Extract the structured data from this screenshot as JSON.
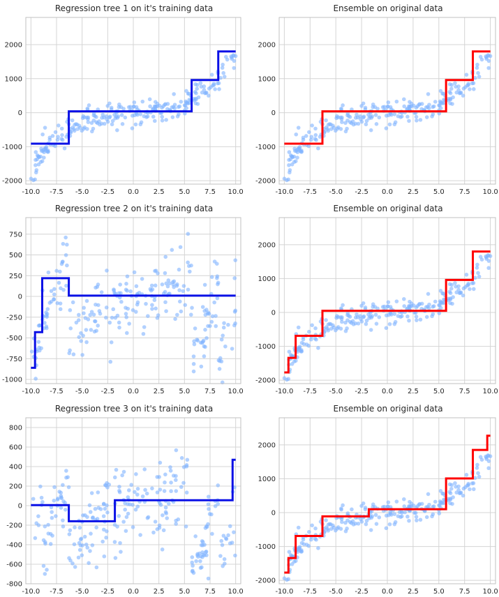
{
  "colors": {
    "background": "#ffffff",
    "grid": "#d4d4d4",
    "axes_edge": "#c0c0c0",
    "points": "#7fb3ff",
    "tree_line": "#0a10e6",
    "ensemble_line": "#ff0000"
  },
  "chart_data": [
    {
      "type": "scatter",
      "title": "Regression tree 1 on it's training data",
      "xlim": [
        -10.5,
        10.5
      ],
      "ylim": [
        -2100,
        2800
      ],
      "xticks": [
        "-10.0",
        "-7.5",
        "-5.0",
        "-2.5",
        "0.0",
        "2.5",
        "5.0",
        "7.5",
        "10.0"
      ],
      "xtick_values": [
        -10,
        -7.5,
        -5,
        -2.5,
        0,
        2.5,
        5,
        7.5,
        10
      ],
      "yticks": [
        "-2000",
        "-1000",
        "0",
        "1000",
        "2000"
      ],
      "ytick_values": [
        -2000,
        -1000,
        0,
        1000,
        2000
      ],
      "grid": true,
      "points_model": "cubic",
      "noise": 200,
      "seed": 11,
      "series": [
        {
          "line_color": "tree",
          "step_x": [
            -10,
            -6.3,
            5.7,
            8.3,
            10
          ],
          "step_y": [
            -910,
            40,
            960,
            1800
          ]
        }
      ]
    },
    {
      "type": "scatter",
      "title": "Ensemble on original data",
      "xlim": [
        -10.5,
        10.5
      ],
      "ylim": [
        -2100,
        2800
      ],
      "xticks": [
        "-10.0",
        "-7.5",
        "-5.0",
        "-2.5",
        "0.0",
        "2.5",
        "5.0",
        "7.5",
        "10.0"
      ],
      "xtick_values": [
        -10,
        -7.5,
        -5,
        -2.5,
        0,
        2.5,
        5,
        7.5,
        10
      ],
      "yticks": [
        "-2000",
        "-1000",
        "0",
        "1000",
        "2000"
      ],
      "ytick_values": [
        -2000,
        -1000,
        0,
        1000,
        2000
      ],
      "grid": true,
      "points_model": "cubic",
      "noise": 200,
      "seed": 11,
      "series": [
        {
          "line_color": "ensemble",
          "step_x": [
            -10,
            -6.3,
            5.7,
            8.3,
            10
          ],
          "step_y": [
            -910,
            40,
            960,
            1800
          ]
        }
      ]
    },
    {
      "type": "scatter",
      "title": "Regression tree 2 on it's training data",
      "xlim": [
        -10.5,
        10.5
      ],
      "ylim": [
        -1050,
        950
      ],
      "xticks": [
        "-10.0",
        "-7.5",
        "-5.0",
        "-2.5",
        "0.0",
        "2.5",
        "5.0",
        "7.5",
        "10.0"
      ],
      "xtick_values": [
        -10,
        -7.5,
        -5,
        -2.5,
        0,
        2.5,
        5,
        7.5,
        10
      ],
      "yticks": [
        "-1000",
        "-750",
        "-500",
        "-250",
        "0",
        "250",
        "500",
        "750"
      ],
      "ytick_values": [
        -1000,
        -750,
        -500,
        -250,
        0,
        250,
        500,
        750
      ],
      "grid": true,
      "points_model": "residual2",
      "noise": 200,
      "seed": 23,
      "series": [
        {
          "line_color": "tree",
          "step_x": [
            -10,
            -9.6,
            -8.9,
            -6.3,
            10
          ],
          "step_y": [
            -860,
            -430,
            220,
            10
          ]
        }
      ]
    },
    {
      "type": "scatter",
      "title": "Ensemble on original data",
      "xlim": [
        -10.5,
        10.5
      ],
      "ylim": [
        -2100,
        2800
      ],
      "xticks": [
        "-10.0",
        "-7.5",
        "-5.0",
        "-2.5",
        "0.0",
        "2.5",
        "5.0",
        "7.5",
        "10.0"
      ],
      "xtick_values": [
        -10,
        -7.5,
        -5,
        -2.5,
        0,
        2.5,
        5,
        7.5,
        10
      ],
      "yticks": [
        "-2000",
        "-1000",
        "0",
        "1000",
        "2000"
      ],
      "ytick_values": [
        -2000,
        -1000,
        0,
        1000,
        2000
      ],
      "grid": true,
      "points_model": "cubic",
      "noise": 200,
      "seed": 11,
      "series": [
        {
          "line_color": "ensemble",
          "step_x": [
            -10,
            -9.6,
            -8.9,
            -6.3,
            5.7,
            8.3,
            10
          ],
          "step_y": [
            -1770,
            -1340,
            -690,
            50,
            960,
            1800
          ]
        }
      ]
    },
    {
      "type": "scatter",
      "title": "Regression tree 3 on it's training data",
      "xlim": [
        -10.5,
        10.5
      ],
      "ylim": [
        -800,
        900
      ],
      "xticks": [
        "-10.0",
        "-7.5",
        "-5.0",
        "-2.5",
        "0.0",
        "2.5",
        "5.0",
        "7.5",
        "10.0"
      ],
      "xtick_values": [
        -10,
        -7.5,
        -5,
        -2.5,
        0,
        2.5,
        5,
        7.5,
        10
      ],
      "yticks": [
        "-800",
        "-600",
        "-400",
        "-200",
        "0",
        "200",
        "400",
        "600",
        "800"
      ],
      "ytick_values": [
        -800,
        -600,
        -400,
        -200,
        0,
        200,
        400,
        600,
        800
      ],
      "grid": true,
      "points_model": "residual3",
      "noise": 200,
      "seed": 37,
      "series": [
        {
          "line_color": "tree",
          "step_x": [
            -10,
            -6.3,
            -1.8,
            9.7,
            10
          ],
          "step_y": [
            5,
            -160,
            55,
            470
          ]
        }
      ]
    },
    {
      "type": "scatter",
      "title": "Ensemble on original data",
      "xlim": [
        -10.5,
        10.5
      ],
      "ylim": [
        -2100,
        2800
      ],
      "xticks": [
        "-10.0",
        "-7.5",
        "-5.0",
        "-2.5",
        "0.0",
        "2.5",
        "5.0",
        "7.5",
        "10.0"
      ],
      "xtick_values": [
        -10,
        -7.5,
        -5,
        -2.5,
        0,
        2.5,
        5,
        7.5,
        10
      ],
      "yticks": [
        "-2000",
        "-1000",
        "0",
        "1000",
        "2000"
      ],
      "ytick_values": [
        -2000,
        -1000,
        0,
        1000,
        2000
      ],
      "grid": true,
      "points_model": "cubic",
      "noise": 200,
      "seed": 11,
      "series": [
        {
          "line_color": "ensemble",
          "step_x": [
            -10,
            -9.6,
            -8.9,
            -6.3,
            -1.8,
            5.7,
            8.3,
            9.7,
            10
          ],
          "step_y": [
            -1770,
            -1340,
            -690,
            -110,
            100,
            1010,
            1850,
            2270
          ]
        }
      ]
    }
  ]
}
